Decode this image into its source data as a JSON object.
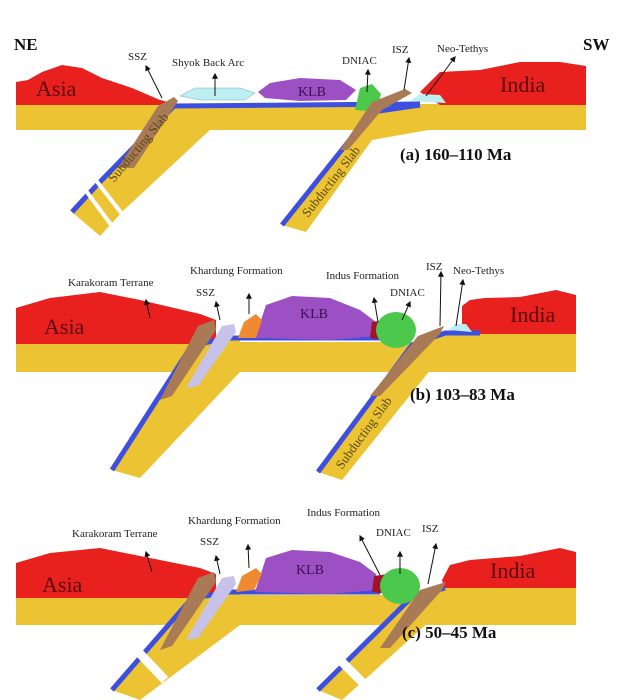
{
  "directions": {
    "left": "NE",
    "right": "SW"
  },
  "colors": {
    "continent": "#e8201e",
    "lithosphere": "#ecc433",
    "oceanic_crust": "#3c4fe0",
    "suture_zone": "#a87a55",
    "klb": "#9c50c4",
    "dniac": "#4cc84c",
    "ocean": "#bdeef2",
    "khardung": "#f08a30",
    "indus": "#a01525",
    "ssz_light": "#c6c2ea"
  },
  "panels": [
    {
      "caption": "(a) 160–110 Ma",
      "asia": "Asia",
      "india": "India",
      "klb": "KLB",
      "labels": {
        "ssz": "SSZ",
        "shyok": "Shyok Back Arc",
        "dniac": "DNIAC",
        "isz": "ISZ",
        "neotethys": "Neo-Tethys"
      },
      "slab_label": "Subducting Slab"
    },
    {
      "caption": "(b) 103–83 Ma",
      "asia": "Asia",
      "india": "India",
      "klb": "KLB",
      "labels": {
        "karakoram": "Karakoram Terrane",
        "khardung": "Khardung Formation",
        "ssz": "SSZ",
        "indus": "Indus Formation",
        "dniac": "DNIAC",
        "isz": "ISZ",
        "neotethys": "Neo-Tethys"
      },
      "slab_label": "Subducting Slab"
    },
    {
      "caption": "(c) 50–45 Ma",
      "asia": "Asia",
      "india": "India",
      "klb": "KLB",
      "labels": {
        "karakoram": "Karakoram Terrane",
        "khardung": "Khardung Formation",
        "ssz": "SSZ",
        "indus": "Indus Formation",
        "dniac": "DNIAC",
        "isz": "ISZ"
      }
    }
  ]
}
